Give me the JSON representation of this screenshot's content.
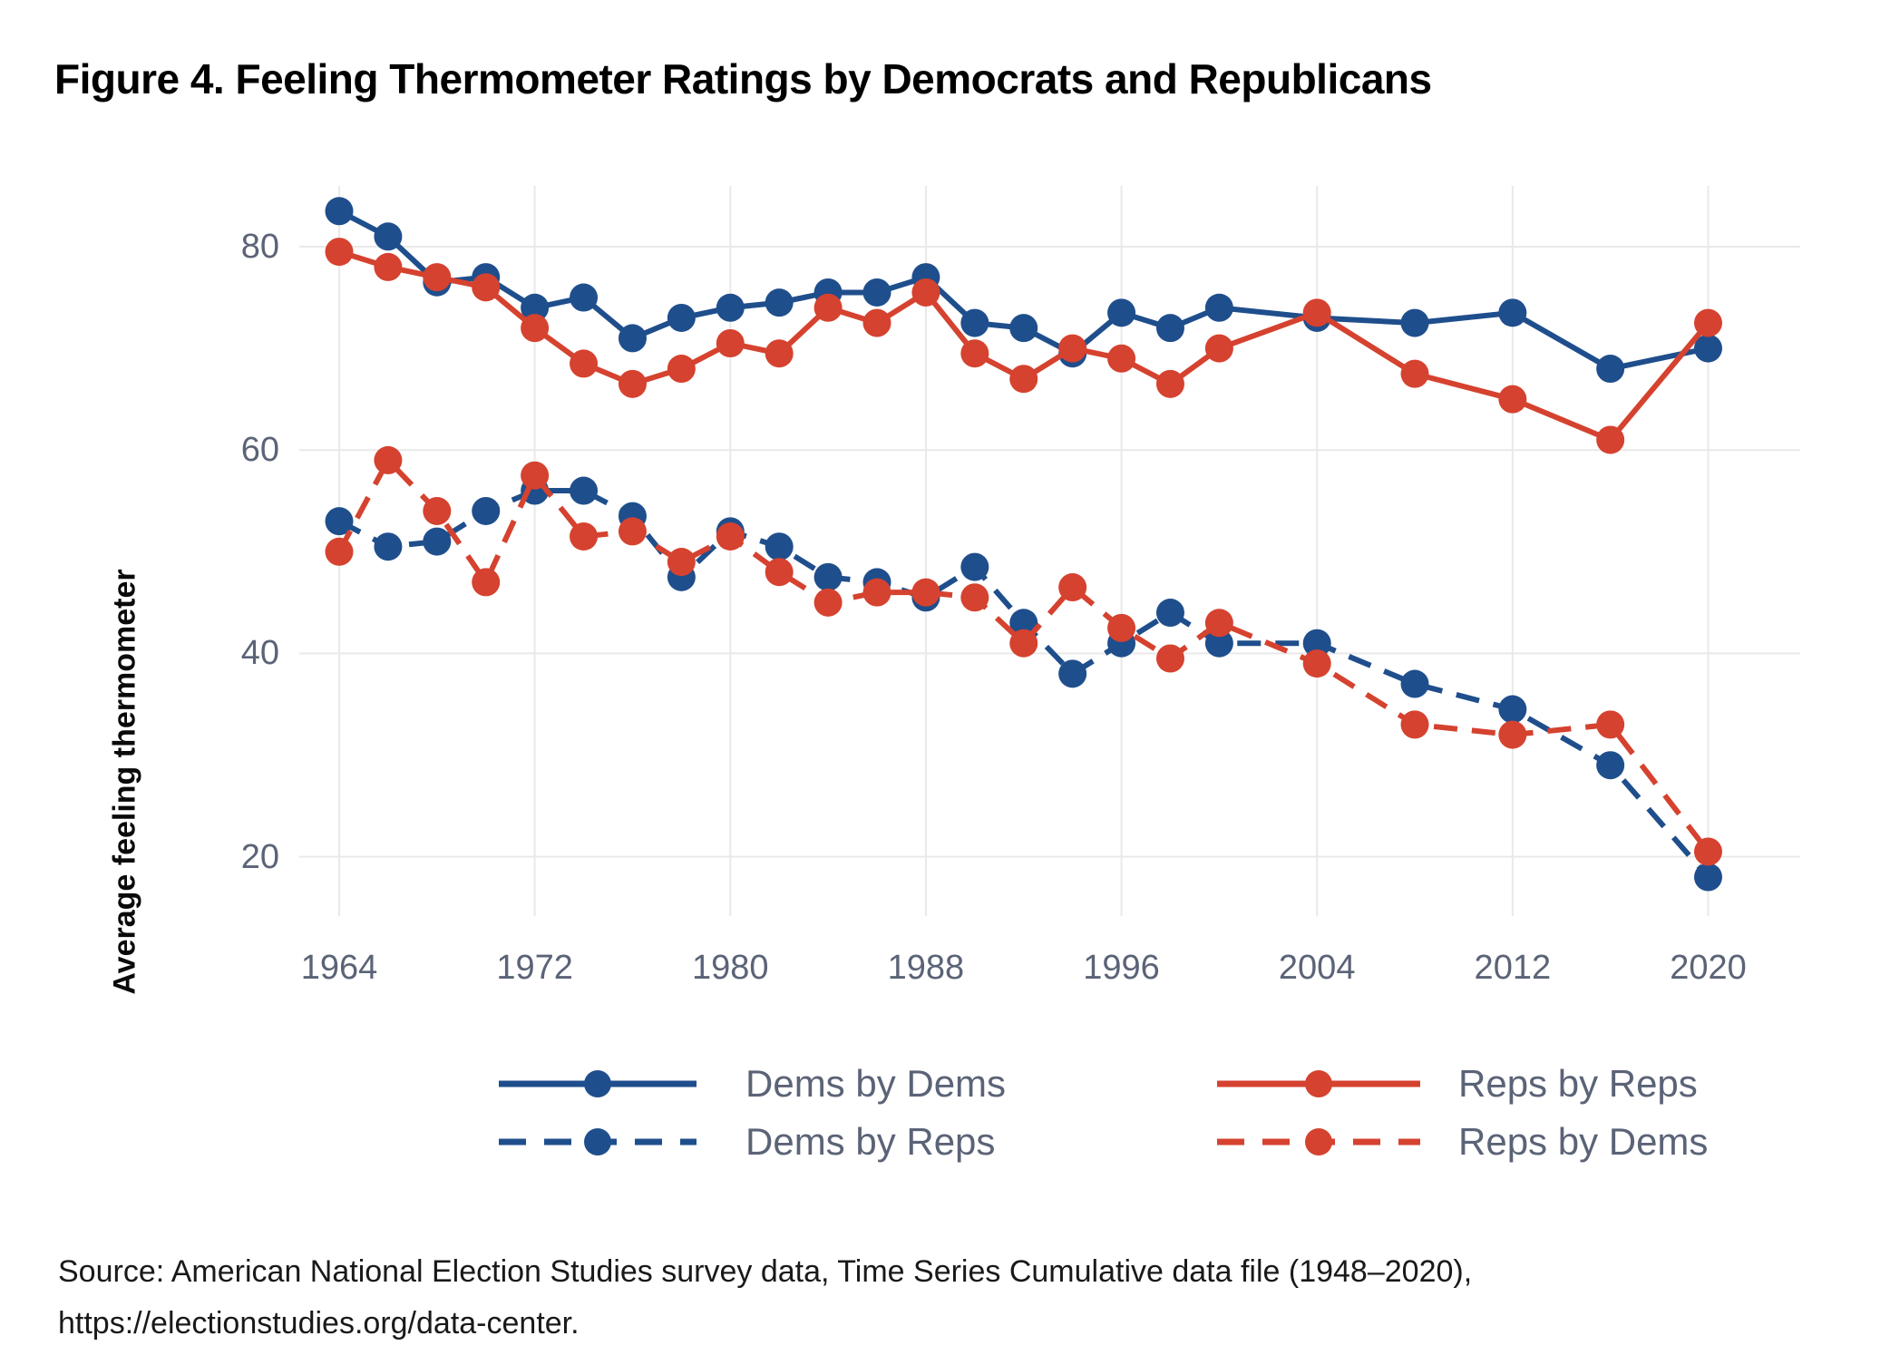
{
  "title": "Figure 4. Feeling Thermometer Ratings by Democrats and Republicans",
  "source": {
    "line1": "Source: American National Election Studies survey data, Time Series Cumulative data file (1948–2020),",
    "line2": "https://electionstudies.org/data-center."
  },
  "colors": {
    "democrat_blue": "#1f4e8c",
    "republican_red": "#d5422f",
    "grid": "#e9e9e9",
    "tick_text": "#5b6377"
  },
  "chart_data": {
    "type": "line",
    "title": "Figure 4. Feeling Thermometer Ratings by Democrats and Republicans",
    "xlabel": "",
    "ylabel": "Average feeling thermometer",
    "x": [
      1964,
      1966,
      1968,
      1970,
      1972,
      1974,
      1976,
      1978,
      1980,
      1982,
      1984,
      1986,
      1988,
      1990,
      1992,
      1994,
      1996,
      1998,
      2000,
      2004,
      2008,
      2012,
      2016,
      2020
    ],
    "x_ticks": [
      1964,
      1972,
      1980,
      1988,
      1996,
      2004,
      2012,
      2020
    ],
    "y_ticks": [
      20,
      40,
      60,
      80
    ],
    "xlim": [
      1962,
      2024
    ],
    "ylim": [
      14,
      86
    ],
    "grid": true,
    "legend_position": "bottom",
    "series": [
      {
        "name": "Dems by Dems",
        "color": "#1f4e8c",
        "style": "solid",
        "values": [
          83.5,
          81,
          76.5,
          77,
          74,
          75,
          71,
          73,
          74,
          74.5,
          75.5,
          75.5,
          77,
          72.5,
          72,
          69.5,
          73.5,
          72,
          74,
          73,
          72.5,
          73.5,
          68,
          70
        ]
      },
      {
        "name": "Reps by Reps",
        "color": "#d5422f",
        "style": "solid",
        "values": [
          79.5,
          78,
          77,
          76,
          72,
          68.5,
          66.5,
          68,
          70.5,
          69.5,
          74,
          72.5,
          75.5,
          69.5,
          67,
          70,
          69,
          66.5,
          70,
          73.5,
          67.5,
          65,
          61,
          72.5
        ]
      },
      {
        "name": "Dems by Reps",
        "color": "#1f4e8c",
        "style": "dashed",
        "values": [
          53,
          50.5,
          51,
          54,
          56,
          56,
          53.5,
          47.5,
          52,
          50.5,
          47.5,
          47,
          45.5,
          48.5,
          43,
          38,
          41,
          44,
          41,
          41,
          37,
          34.5,
          29,
          18
        ]
      },
      {
        "name": "Reps by Dems",
        "color": "#d5422f",
        "style": "dashed",
        "values": [
          50,
          59,
          54,
          47,
          57.5,
          51.5,
          52,
          49,
          51.5,
          48,
          45,
          46,
          46,
          45.5,
          41,
          46.5,
          42.5,
          39.5,
          43,
          39,
          33,
          32,
          33,
          20.5
        ]
      }
    ]
  }
}
